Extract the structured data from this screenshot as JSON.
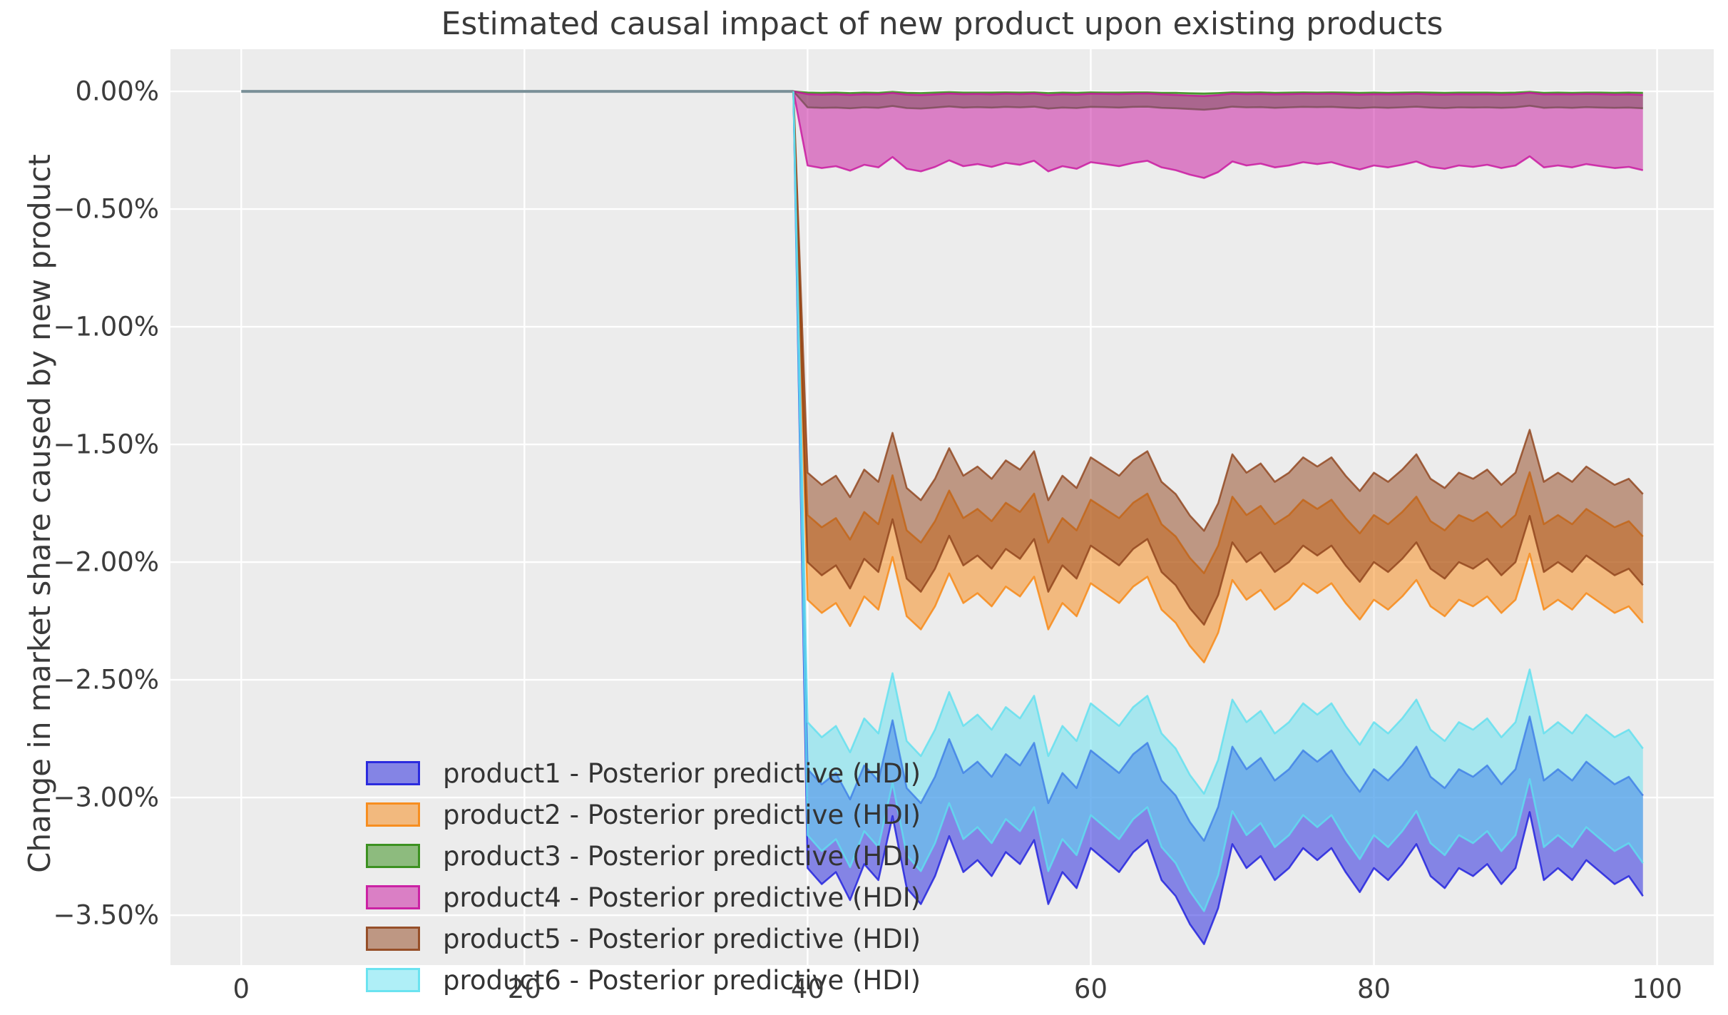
{
  "title": "Estimated causal impact of new product upon existing products",
  "ylabel": "Change in market share caused by new product",
  "plot_bg_color": "#ececec",
  "grid_color": "#ffffff",
  "text_color": "#3a3a3a",
  "chart_data": {
    "type": "area",
    "title": "Estimated causal impact of new product upon existing products",
    "xlabel": "",
    "ylabel": "Change in market share caused by new product",
    "xlim": [
      -5,
      104
    ],
    "ylim": [
      -3.712,
      0.179
    ],
    "grid": "white major gridlines on gray background",
    "legend_position": "lower left",
    "x_ticks": [
      0,
      20,
      40,
      60,
      80,
      100
    ],
    "y_ticks": [
      {
        "value": 0.0,
        "label": "0.00%"
      },
      {
        "value": -0.5,
        "label": "−0.50%"
      },
      {
        "value": -1.0,
        "label": "−1.00%"
      },
      {
        "value": -1.5,
        "label": "−1.50%"
      },
      {
        "value": -2.0,
        "label": "−2.00%"
      },
      {
        "value": -2.5,
        "label": "−2.50%"
      },
      {
        "value": -3.0,
        "label": "−3.00%"
      },
      {
        "value": -3.5,
        "label": "−3.50%"
      }
    ],
    "units": "percent change in market share",
    "treatment_start_x": 40,
    "pre_period_line": {
      "x": [
        0,
        39
      ],
      "y": [
        0,
        0
      ],
      "color": "#7a9098",
      "note": "all products flat at 0% before new product launch"
    },
    "x_post": [
      40,
      41,
      42,
      43,
      44,
      45,
      46,
      47,
      48,
      49,
      50,
      51,
      52,
      53,
      54,
      55,
      56,
      57,
      58,
      59,
      60,
      61,
      62,
      63,
      64,
      65,
      66,
      67,
      68,
      69,
      70,
      71,
      72,
      73,
      74,
      75,
      76,
      77,
      78,
      79,
      80,
      81,
      82,
      83,
      84,
      85,
      86,
      87,
      88,
      89,
      90,
      91,
      92,
      93,
      94,
      95,
      96,
      97,
      98,
      99
    ],
    "series": [
      {
        "name": "product1",
        "label": "product1 - Posterior predictive (HDI)",
        "color": "#1b1bdd",
        "fill_alpha": 0.5,
        "upper": [
          -2.88,
          -2.944,
          -2.896,
          -3.008,
          -2.864,
          -2.928,
          -2.672,
          -2.96,
          -3.024,
          -2.912,
          -2.752,
          -2.896,
          -2.848,
          -2.912,
          -2.816,
          -2.864,
          -2.768,
          -3.024,
          -2.896,
          -2.96,
          -2.8,
          -2.848,
          -2.896,
          -2.816,
          -2.768,
          -2.928,
          -2.992,
          -3.104,
          -3.184,
          -3.04,
          -2.784,
          -2.88,
          -2.832,
          -2.928,
          -2.88,
          -2.8,
          -2.848,
          -2.8,
          -2.896,
          -2.976,
          -2.88,
          -2.928,
          -2.864,
          -2.784,
          -2.912,
          -2.96,
          -2.88,
          -2.912,
          -2.864,
          -2.944,
          -2.88,
          -2.656,
          -2.928,
          -2.88,
          -2.928,
          -2.848,
          -2.896,
          -2.944,
          -2.912,
          -2.992
        ],
        "lower": [
          -3.3,
          -3.368,
          -3.317,
          -3.436,
          -3.283,
          -3.351,
          -3.079,
          -3.385,
          -3.453,
          -3.334,
          -3.164,
          -3.317,
          -3.266,
          -3.334,
          -3.232,
          -3.283,
          -3.181,
          -3.453,
          -3.317,
          -3.385,
          -3.215,
          -3.266,
          -3.317,
          -3.232,
          -3.181,
          -3.351,
          -3.419,
          -3.538,
          -3.623,
          -3.47,
          -3.198,
          -3.3,
          -3.249,
          -3.351,
          -3.3,
          -3.215,
          -3.266,
          -3.215,
          -3.317,
          -3.402,
          -3.3,
          -3.351,
          -3.283,
          -3.198,
          -3.334,
          -3.385,
          -3.3,
          -3.334,
          -3.283,
          -3.368,
          -3.3,
          -3.062,
          -3.351,
          -3.3,
          -3.351,
          -3.266,
          -3.317,
          -3.368,
          -3.334,
          -3.419
        ]
      },
      {
        "name": "product2",
        "label": "product2 - Posterior predictive (HDI)",
        "color": "#f8860f",
        "fill_alpha": 0.5,
        "upper": [
          -1.8,
          -1.852,
          -1.813,
          -1.904,
          -1.787,
          -1.839,
          -1.631,
          -1.865,
          -1.917,
          -1.826,
          -1.696,
          -1.813,
          -1.774,
          -1.826,
          -1.748,
          -1.787,
          -1.709,
          -1.917,
          -1.813,
          -1.865,
          -1.735,
          -1.774,
          -1.813,
          -1.748,
          -1.709,
          -1.839,
          -1.891,
          -1.982,
          -2.047,
          -1.93,
          -1.722,
          -1.8,
          -1.761,
          -1.839,
          -1.8,
          -1.735,
          -1.774,
          -1.735,
          -1.813,
          -1.878,
          -1.8,
          -1.839,
          -1.787,
          -1.722,
          -1.826,
          -1.865,
          -1.8,
          -1.826,
          -1.787,
          -1.852,
          -1.8,
          -1.618,
          -1.839,
          -1.8,
          -1.839,
          -1.774,
          -1.813,
          -1.852,
          -1.826,
          -1.891
        ],
        "lower": [
          -2.16,
          -2.216,
          -2.174,
          -2.272,
          -2.146,
          -2.202,
          -1.978,
          -2.23,
          -2.286,
          -2.188,
          -2.048,
          -2.174,
          -2.132,
          -2.188,
          -2.104,
          -2.146,
          -2.062,
          -2.286,
          -2.174,
          -2.23,
          -2.09,
          -2.132,
          -2.174,
          -2.104,
          -2.062,
          -2.202,
          -2.258,
          -2.356,
          -2.426,
          -2.3,
          -2.076,
          -2.16,
          -2.118,
          -2.202,
          -2.16,
          -2.09,
          -2.132,
          -2.09,
          -2.174,
          -2.244,
          -2.16,
          -2.202,
          -2.146,
          -2.076,
          -2.188,
          -2.23,
          -2.16,
          -2.188,
          -2.146,
          -2.216,
          -2.16,
          -1.964,
          -2.202,
          -2.16,
          -2.202,
          -2.132,
          -2.174,
          -2.216,
          -2.188,
          -2.258
        ]
      },
      {
        "name": "product3",
        "label": "product3 - Posterior predictive (HDI)",
        "color": "#2e8a10",
        "fill_alpha": 0.5,
        "upper": [
          -0.005,
          -0.006,
          -0.005,
          -0.007,
          -0.005,
          -0.006,
          -0.002,
          -0.006,
          -0.007,
          -0.005,
          -0.003,
          -0.005,
          -0.005,
          -0.005,
          -0.004,
          -0.005,
          -0.004,
          -0.007,
          -0.005,
          -0.006,
          -0.004,
          -0.005,
          -0.005,
          -0.004,
          -0.004,
          -0.006,
          -0.006,
          -0.008,
          -0.009,
          -0.007,
          -0.004,
          -0.005,
          -0.004,
          -0.006,
          -0.005,
          -0.004,
          -0.005,
          -0.004,
          -0.005,
          -0.006,
          -0.005,
          -0.006,
          -0.005,
          -0.004,
          -0.005,
          -0.006,
          -0.005,
          -0.005,
          -0.005,
          -0.006,
          -0.005,
          -0.002,
          -0.006,
          -0.005,
          -0.006,
          -0.005,
          -0.005,
          -0.006,
          -0.005,
          -0.006
        ],
        "lower": [
          -0.068,
          -0.07,
          -0.069,
          -0.072,
          -0.068,
          -0.07,
          -0.062,
          -0.071,
          -0.073,
          -0.069,
          -0.064,
          -0.069,
          -0.067,
          -0.069,
          -0.066,
          -0.068,
          -0.065,
          -0.073,
          -0.069,
          -0.071,
          -0.066,
          -0.067,
          -0.069,
          -0.066,
          -0.065,
          -0.07,
          -0.072,
          -0.075,
          -0.078,
          -0.073,
          -0.065,
          -0.068,
          -0.067,
          -0.07,
          -0.068,
          -0.066,
          -0.067,
          -0.066,
          -0.069,
          -0.071,
          -0.068,
          -0.07,
          -0.068,
          -0.065,
          -0.069,
          -0.071,
          -0.068,
          -0.069,
          -0.068,
          -0.07,
          -0.068,
          -0.061,
          -0.07,
          -0.068,
          -0.07,
          -0.067,
          -0.069,
          -0.07,
          -0.069,
          -0.072
        ]
      },
      {
        "name": "product4",
        "label": "product4 - Posterior predictive (HDI)",
        "color": "#c8129e",
        "fill_alpha": 0.5,
        "upper": [
          -0.012,
          -0.014,
          -0.012,
          -0.015,
          -0.012,
          -0.013,
          -0.007,
          -0.014,
          -0.016,
          -0.013,
          -0.009,
          -0.012,
          -0.011,
          -0.013,
          -0.01,
          -0.012,
          -0.009,
          -0.016,
          -0.012,
          -0.014,
          -0.01,
          -0.011,
          -0.012,
          -0.01,
          -0.009,
          -0.013,
          -0.015,
          -0.018,
          -0.02,
          -0.016,
          -0.01,
          -0.012,
          -0.011,
          -0.013,
          -0.012,
          -0.01,
          -0.011,
          -0.01,
          -0.012,
          -0.014,
          -0.012,
          -0.013,
          -0.012,
          -0.01,
          -0.013,
          -0.014,
          -0.012,
          -0.013,
          -0.012,
          -0.014,
          -0.012,
          -0.006,
          -0.013,
          -0.012,
          -0.013,
          -0.011,
          -0.012,
          -0.014,
          -0.013,
          -0.015
        ],
        "lower": [
          -0.315,
          -0.326,
          -0.318,
          -0.337,
          -0.312,
          -0.323,
          -0.279,
          -0.329,
          -0.34,
          -0.321,
          -0.293,
          -0.318,
          -0.309,
          -0.321,
          -0.304,
          -0.312,
          -0.295,
          -0.34,
          -0.318,
          -0.329,
          -0.301,
          -0.309,
          -0.318,
          -0.304,
          -0.295,
          -0.323,
          -0.335,
          -0.354,
          -0.368,
          -0.343,
          -0.298,
          -0.315,
          -0.307,
          -0.323,
          -0.315,
          -0.301,
          -0.309,
          -0.301,
          -0.318,
          -0.332,
          -0.315,
          -0.323,
          -0.312,
          -0.298,
          -0.321,
          -0.329,
          -0.315,
          -0.321,
          -0.312,
          -0.326,
          -0.315,
          -0.276,
          -0.323,
          -0.315,
          -0.323,
          -0.309,
          -0.318,
          -0.326,
          -0.321,
          -0.335
        ]
      },
      {
        "name": "product5",
        "label": "product5 - Posterior predictive (HDI)",
        "color": "#8f421a",
        "fill_alpha": 0.5,
        "upper": [
          -1.62,
          -1.672,
          -1.633,
          -1.724,
          -1.607,
          -1.659,
          -1.451,
          -1.685,
          -1.737,
          -1.646,
          -1.516,
          -1.633,
          -1.594,
          -1.646,
          -1.568,
          -1.607,
          -1.529,
          -1.737,
          -1.633,
          -1.685,
          -1.555,
          -1.594,
          -1.633,
          -1.568,
          -1.529,
          -1.659,
          -1.711,
          -1.802,
          -1.867,
          -1.75,
          -1.542,
          -1.62,
          -1.581,
          -1.659,
          -1.62,
          -1.555,
          -1.594,
          -1.555,
          -1.633,
          -1.698,
          -1.62,
          -1.659,
          -1.607,
          -1.542,
          -1.646,
          -1.685,
          -1.62,
          -1.646,
          -1.607,
          -1.672,
          -1.62,
          -1.438,
          -1.659,
          -1.62,
          -1.659,
          -1.594,
          -1.633,
          -1.672,
          -1.646,
          -1.711
        ],
        "lower": [
          -2.0,
          -2.056,
          -2.014,
          -2.112,
          -1.986,
          -2.042,
          -1.818,
          -2.07,
          -2.126,
          -2.028,
          -1.888,
          -2.014,
          -1.972,
          -2.028,
          -1.944,
          -1.986,
          -1.902,
          -2.126,
          -2.014,
          -2.07,
          -1.93,
          -1.972,
          -2.014,
          -1.944,
          -1.902,
          -2.042,
          -2.098,
          -2.196,
          -2.266,
          -2.14,
          -1.916,
          -2.0,
          -1.958,
          -2.042,
          -2.0,
          -1.93,
          -1.972,
          -1.93,
          -2.014,
          -2.084,
          -2.0,
          -2.042,
          -1.986,
          -1.916,
          -2.028,
          -2.07,
          -2.0,
          -2.028,
          -1.986,
          -2.056,
          -2.0,
          -1.804,
          -2.042,
          -2.0,
          -2.042,
          -1.972,
          -2.014,
          -2.056,
          -2.028,
          -2.098
        ]
      },
      {
        "name": "product6",
        "label": "product6 - Posterior predictive (HDI)",
        "color": "#5fe0ef",
        "fill_alpha": 0.5,
        "upper": [
          -2.68,
          -2.744,
          -2.696,
          -2.808,
          -2.664,
          -2.728,
          -2.472,
          -2.76,
          -2.824,
          -2.712,
          -2.552,
          -2.696,
          -2.648,
          -2.712,
          -2.616,
          -2.664,
          -2.568,
          -2.824,
          -2.696,
          -2.76,
          -2.6,
          -2.648,
          -2.696,
          -2.616,
          -2.568,
          -2.728,
          -2.792,
          -2.904,
          -2.984,
          -2.84,
          -2.584,
          -2.68,
          -2.632,
          -2.728,
          -2.68,
          -2.6,
          -2.648,
          -2.6,
          -2.696,
          -2.776,
          -2.68,
          -2.728,
          -2.664,
          -2.584,
          -2.712,
          -2.76,
          -2.68,
          -2.712,
          -2.664,
          -2.744,
          -2.68,
          -2.456,
          -2.728,
          -2.68,
          -2.728,
          -2.648,
          -2.696,
          -2.744,
          -2.712,
          -2.792
        ],
        "lower": [
          -3.16,
          -3.228,
          -3.177,
          -3.296,
          -3.143,
          -3.211,
          -2.939,
          -3.245,
          -3.313,
          -3.194,
          -3.024,
          -3.177,
          -3.126,
          -3.194,
          -3.092,
          -3.143,
          -3.041,
          -3.313,
          -3.177,
          -3.245,
          -3.075,
          -3.126,
          -3.177,
          -3.092,
          -3.041,
          -3.211,
          -3.279,
          -3.398,
          -3.483,
          -3.33,
          -3.058,
          -3.16,
          -3.109,
          -3.211,
          -3.16,
          -3.075,
          -3.126,
          -3.075,
          -3.177,
          -3.262,
          -3.16,
          -3.211,
          -3.143,
          -3.058,
          -3.194,
          -3.245,
          -3.16,
          -3.194,
          -3.143,
          -3.228,
          -3.16,
          -2.922,
          -3.211,
          -3.16,
          -3.211,
          -3.126,
          -3.177,
          -3.228,
          -3.194,
          -3.279
        ]
      }
    ]
  }
}
